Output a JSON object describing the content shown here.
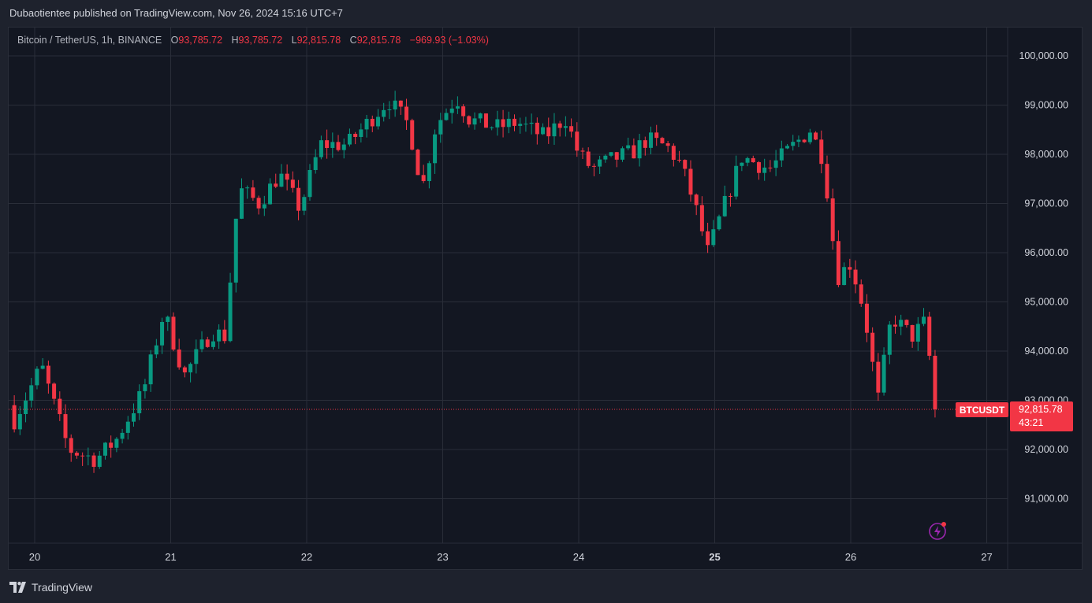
{
  "header": {
    "text": "Dubaotientee published on TradingView.com, Nov 26, 2024 15:16 UTC+7"
  },
  "legend": {
    "symbol": "Bitcoin / TetherUS, 1h, BINANCE",
    "o_label": "O",
    "o_value": "93,785.72",
    "h_label": "H",
    "h_value": "93,785.72",
    "l_label": "L",
    "l_value": "92,815.78",
    "c_label": "C",
    "c_value": "92,815.78",
    "change": "−969.93 (−1.03%)"
  },
  "price_tag": {
    "symbol": "BTCUSDT",
    "price": "92,815.78",
    "countdown": "43:21"
  },
  "footer": {
    "brand": "TradingView"
  },
  "colors": {
    "up": "#089981",
    "down": "#f23645",
    "bg": "#131722",
    "grid": "#2a2e39",
    "text": "#d1d4dc"
  },
  "chart_data": {
    "type": "candlestick",
    "y_ticks": [
      100000,
      99000,
      98000,
      97000,
      96000,
      95000,
      94000,
      93000,
      92000,
      91000
    ],
    "y_tick_labels": [
      "100,000.00",
      "99,000.00",
      "98,000.00",
      "97,000.00",
      "96,000.00",
      "95,000.00",
      "94,000.00",
      "93,000.00",
      "92,000.00",
      "91,000.00"
    ],
    "x_ticks": [
      20,
      21,
      22,
      23,
      24,
      25,
      26,
      27
    ],
    "x_tick_labels": [
      "20",
      "21",
      "22",
      "23",
      "24",
      "25",
      "26",
      "27"
    ],
    "x_bold_ticks": [
      "25"
    ],
    "ylim": [
      90400,
      100600
    ],
    "last_price": 92815.78,
    "grid": true,
    "keypoints": [
      [
        19.85,
        92600
      ],
      [
        20.05,
        93700
      ],
      [
        20.25,
        92000
      ],
      [
        20.45,
        91800
      ],
      [
        20.6,
        92200
      ],
      [
        20.8,
        93200
      ],
      [
        20.95,
        94800
      ],
      [
        21.1,
        93500
      ],
      [
        21.3,
        94400
      ],
      [
        21.4,
        94300
      ],
      [
        21.5,
        97300
      ],
      [
        21.65,
        97000
      ],
      [
        21.8,
        97600
      ],
      [
        21.95,
        96900
      ],
      [
        22.1,
        98200
      ],
      [
        22.3,
        98200
      ],
      [
        22.5,
        98800
      ],
      [
        22.6,
        99100
      ],
      [
        22.75,
        98600
      ],
      [
        22.85,
        97300
      ],
      [
        22.95,
        98600
      ],
      [
        23.1,
        99150
      ],
      [
        23.2,
        98700
      ],
      [
        23.4,
        98550
      ],
      [
        23.55,
        98650
      ],
      [
        23.75,
        98350
      ],
      [
        23.9,
        98750
      ],
      [
        24.0,
        98000
      ],
      [
        24.1,
        97700
      ],
      [
        24.25,
        97900
      ],
      [
        24.4,
        98050
      ],
      [
        24.5,
        98300
      ],
      [
        24.65,
        98150
      ],
      [
        24.75,
        97800
      ],
      [
        24.85,
        97000
      ],
      [
        24.95,
        96000
      ],
      [
        25.05,
        96800
      ],
      [
        25.2,
        97950
      ],
      [
        25.4,
        97700
      ],
      [
        25.55,
        98100
      ],
      [
        25.7,
        98500
      ],
      [
        25.8,
        97900
      ],
      [
        25.9,
        95500
      ],
      [
        26.0,
        95800
      ],
      [
        26.1,
        94800
      ],
      [
        26.2,
        93000
      ],
      [
        26.3,
        94700
      ],
      [
        26.45,
        94300
      ],
      [
        26.55,
        94600
      ],
      [
        26.62,
        92815.78
      ]
    ]
  }
}
